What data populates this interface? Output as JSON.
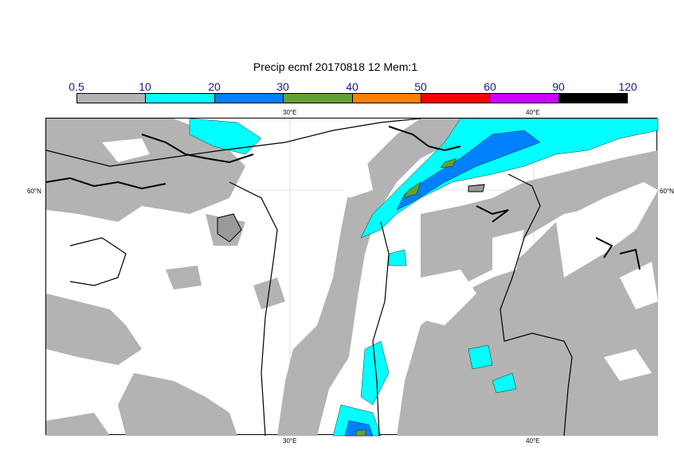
{
  "title": "Precip ecmf 20170818 12 Mem:1",
  "colorbar": {
    "labels": [
      "0.5",
      "10",
      "20",
      "30",
      "40",
      "50",
      "60",
      "90",
      "120"
    ],
    "colors": [
      "#b3b3b3",
      "#00ffff",
      "#0080ff",
      "#66a033",
      "#ff8000",
      "#ff0000",
      "#cc00ff",
      "#000000"
    ]
  },
  "axes": {
    "top_lon": [
      "30°E",
      "40°E"
    ],
    "bottom_lon": [
      "30°E",
      "40°E"
    ],
    "left_lat": "60°N",
    "right_lat": "60°N"
  },
  "map_colors": {
    "land_shade": "#b3b3b3",
    "light_precip": "#00ffff",
    "mid_precip": "#0080ff",
    "heavy_precip": "#66a033"
  }
}
